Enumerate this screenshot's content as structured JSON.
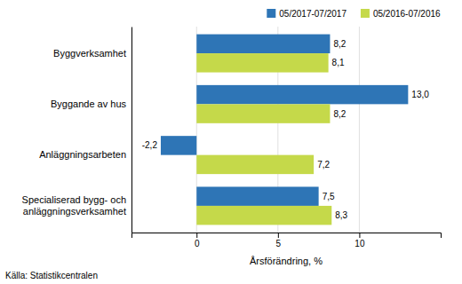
{
  "chart_data": {
    "type": "bar",
    "orientation": "horizontal",
    "categories": [
      "Byggverksamhet",
      "Byggande av hus",
      "Anläggningsarbeten",
      "Specialiserad bygg- och\nanläggningsverksamhet"
    ],
    "series": [
      {
        "name": "05/2017-07/2017",
        "color": "#2E75B6",
        "values": [
          8.2,
          13.0,
          -2.2,
          7.5
        ],
        "value_labels": [
          "8,2",
          "13,0",
          "-2,2",
          "7,5"
        ]
      },
      {
        "name": "05/2016-07/2016",
        "color": "#C5D94A",
        "values": [
          8.1,
          8.2,
          7.2,
          8.3
        ],
        "value_labels": [
          "8,1",
          "8,2",
          "7,2",
          "8,3"
        ]
      }
    ],
    "xlabel": "Årsförändring, %",
    "xlim": [
      -4,
      15
    ],
    "xticks": [
      0,
      5,
      10
    ],
    "grid": true,
    "legend": "upper right",
    "data_labels": true,
    "annotations": [
      "Källa: Statistikcentralen"
    ]
  }
}
